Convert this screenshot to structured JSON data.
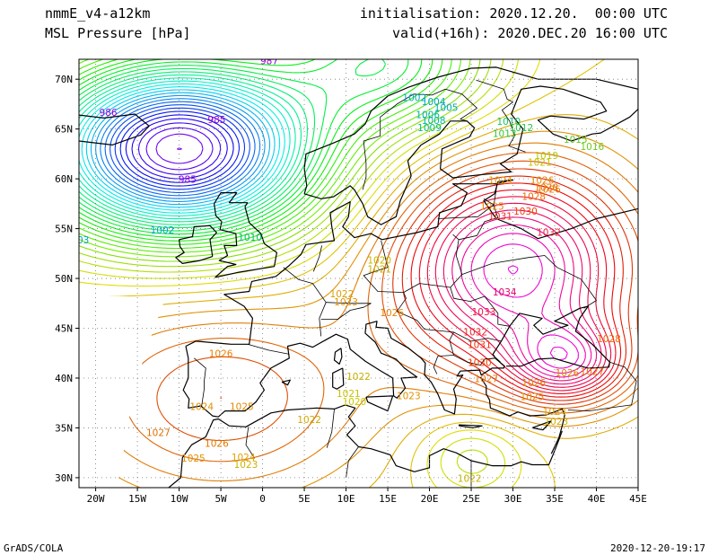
{
  "header": {
    "model": "nmmE_v4-a12km",
    "field": "MSL Pressure [hPa]",
    "init_label": "initialisation:",
    "init_value": "2020.12.20.  00:00 UTC",
    "valid_label": "valid(+16h):",
    "valid_value": "2020.DEC.20 16:00 UTC"
  },
  "footer": {
    "credit": "GrADS/COLA",
    "timestamp": "2020-12-20-19:17"
  },
  "map_data": {
    "projection": "lat-lon",
    "lon_range": [
      -22,
      45
    ],
    "lat_range": [
      29,
      72
    ],
    "lon_ticks": [
      {
        "v": -20,
        "t": "20W"
      },
      {
        "v": -15,
        "t": "15W"
      },
      {
        "v": -10,
        "t": "10W"
      },
      {
        "v": -5,
        "t": "5W"
      },
      {
        "v": 0,
        "t": "0"
      },
      {
        "v": 5,
        "t": "5E"
      },
      {
        "v": 10,
        "t": "10E"
      },
      {
        "v": 15,
        "t": "15E"
      },
      {
        "v": 20,
        "t": "20E"
      },
      {
        "v": 25,
        "t": "25E"
      },
      {
        "v": 30,
        "t": "30E"
      },
      {
        "v": 35,
        "t": "35E"
      },
      {
        "v": 40,
        "t": "40E"
      },
      {
        "v": 45,
        "t": "45E"
      }
    ],
    "lat_ticks": [
      {
        "v": 30,
        "t": "30N"
      },
      {
        "v": 35,
        "t": "35N"
      },
      {
        "v": 40,
        "t": "40N"
      },
      {
        "v": 45,
        "t": "45N"
      },
      {
        "v": 50,
        "t": "50N"
      },
      {
        "v": 55,
        "t": "55N"
      },
      {
        "v": 60,
        "t": "60N"
      },
      {
        "v": 65,
        "t": "65N"
      },
      {
        "v": 70,
        "t": "70N"
      }
    ],
    "grid": "dotted",
    "pressure_centers": [
      {
        "name": "low-iceland",
        "lon": -10,
        "lat": 63,
        "hpa": 984,
        "colorful": true
      },
      {
        "name": "high-russia",
        "lon": 30,
        "lat": 51,
        "hpa": 1035,
        "colorful": true
      },
      {
        "name": "high-turkey",
        "lon": 36.5,
        "lat": 41.5,
        "hpa": 1029,
        "colorful": true
      }
    ],
    "contour_labels": [
      {
        "lon": 0.8,
        "lat": 71.5,
        "text": "987",
        "color": "#9b00d8"
      },
      {
        "lon": -18.5,
        "lat": 66.3,
        "text": "986",
        "color": "#9b00d8"
      },
      {
        "lon": -5.5,
        "lat": 65.6,
        "text": "985",
        "color": "#9b00d8"
      },
      {
        "lon": -9,
        "lat": 59.6,
        "text": "985",
        "color": "#8a00e0"
      },
      {
        "lon": -12,
        "lat": 54.5,
        "text": "1002",
        "color": "#00a0c8"
      },
      {
        "lon": -21.5,
        "lat": 53.5,
        "text": "03",
        "color": "#00a0c8"
      },
      {
        "lon": -1.5,
        "lat": 53.8,
        "text": "1010",
        "color": "#00b878"
      },
      {
        "lon": 18.2,
        "lat": 67.8,
        "text": "1002",
        "color": "#00a8c0"
      },
      {
        "lon": 20.5,
        "lat": 67.4,
        "text": "1004",
        "color": "#00a8c0"
      },
      {
        "lon": 22,
        "lat": 66.8,
        "text": "1005",
        "color": "#00a8c0"
      },
      {
        "lon": 19.8,
        "lat": 66.1,
        "text": "1006",
        "color": "#00b0b0"
      },
      {
        "lon": 20.5,
        "lat": 65.5,
        "text": "1008",
        "color": "#00b8a0"
      },
      {
        "lon": 20,
        "lat": 64.8,
        "text": "1009",
        "color": "#00c080"
      },
      {
        "lon": 29.5,
        "lat": 65.4,
        "text": "1010",
        "color": "#10c860"
      },
      {
        "lon": 31,
        "lat": 64.8,
        "text": "1012",
        "color": "#20c840"
      },
      {
        "lon": 29,
        "lat": 64.2,
        "text": "1013",
        "color": "#30c830"
      },
      {
        "lon": 37.5,
        "lat": 63.6,
        "text": "1015",
        "color": "#60c820"
      },
      {
        "lon": 39.5,
        "lat": 62.9,
        "text": "1016",
        "color": "#70c818"
      },
      {
        "lon": 34,
        "lat": 62.0,
        "text": "1019",
        "color": "#b0c800"
      },
      {
        "lon": 33.2,
        "lat": 61.3,
        "text": "1021",
        "color": "#c8c000"
      },
      {
        "lon": 28.5,
        "lat": 59.5,
        "text": "1024",
        "color": "#e09a00"
      },
      {
        "lon": 33.5,
        "lat": 59.5,
        "text": "1026",
        "color": "#e88400"
      },
      {
        "lon": 34.3,
        "lat": 58.6,
        "text": "1026",
        "color": "#e88000"
      },
      {
        "lon": 34,
        "lat": 58.8,
        "text": "1028",
        "color": "#ee6c00"
      },
      {
        "lon": 32.5,
        "lat": 57.9,
        "text": "1028",
        "color": "#ee6c00"
      },
      {
        "lon": 27.5,
        "lat": 56.9,
        "text": "1025",
        "color": "#e88400"
      },
      {
        "lon": 31.5,
        "lat": 56.4,
        "text": "1030",
        "color": "#f04400"
      },
      {
        "lon": 28.5,
        "lat": 55.9,
        "text": "1031",
        "color": "#f03020"
      },
      {
        "lon": 34.3,
        "lat": 54.3,
        "text": "1032",
        "color": "#f02040"
      },
      {
        "lon": 29,
        "lat": 48.3,
        "text": "1034",
        "color": "#e8006a"
      },
      {
        "lon": 26.5,
        "lat": 46.3,
        "text": "1033",
        "color": "#f01840"
      },
      {
        "lon": 25.5,
        "lat": 44.3,
        "text": "1032",
        "color": "#f02828"
      },
      {
        "lon": 26,
        "lat": 43.0,
        "text": "1031",
        "color": "#f03810"
      },
      {
        "lon": 26,
        "lat": 41.2,
        "text": "1030",
        "color": "#f04800"
      },
      {
        "lon": 26.8,
        "lat": 39.6,
        "text": "1027",
        "color": "#e07800"
      },
      {
        "lon": 32.5,
        "lat": 39.2,
        "text": "1026",
        "color": "#e08400"
      },
      {
        "lon": 36.5,
        "lat": 40.2,
        "text": "1026",
        "color": "#e08400"
      },
      {
        "lon": 39.5,
        "lat": 40.3,
        "text": "1027",
        "color": "#e07800"
      },
      {
        "lon": 41.5,
        "lat": 43.6,
        "text": "1028",
        "color": "#ee6c00"
      },
      {
        "lon": 32.3,
        "lat": 37.8,
        "text": "1025",
        "color": "#e09000"
      },
      {
        "lon": 35,
        "lat": 36.3,
        "text": "1024",
        "color": "#e0a000"
      },
      {
        "lon": 35.2,
        "lat": 35.3,
        "text": "1023",
        "color": "#d0b000"
      },
      {
        "lon": 14,
        "lat": 51.5,
        "text": "1020",
        "color": "#c8b800"
      },
      {
        "lon": 14,
        "lat": 50.6,
        "text": "1021",
        "color": "#c8b000"
      },
      {
        "lon": 9.5,
        "lat": 48.1,
        "text": "1022",
        "color": "#d8a000"
      },
      {
        "lon": 10,
        "lat": 47.3,
        "text": "1023",
        "color": "#e09000"
      },
      {
        "lon": 15.5,
        "lat": 46.2,
        "text": "1026",
        "color": "#e88000"
      },
      {
        "lon": -5,
        "lat": 42.1,
        "text": "1026",
        "color": "#e88000"
      },
      {
        "lon": 11.5,
        "lat": 39.8,
        "text": "1022",
        "color": "#c8b000"
      },
      {
        "lon": 10.3,
        "lat": 38.1,
        "text": "1021",
        "color": "#c8c000"
      },
      {
        "lon": 11,
        "lat": 37.3,
        "text": "1020",
        "color": "#c8c800"
      },
      {
        "lon": 17.5,
        "lat": 37.9,
        "text": "1023",
        "color": "#e09000"
      },
      {
        "lon": 5.6,
        "lat": 35.5,
        "text": "1022",
        "color": "#d0a800"
      },
      {
        "lon": -7.3,
        "lat": 36.8,
        "text": "1024",
        "color": "#e09000"
      },
      {
        "lon": -2.5,
        "lat": 36.8,
        "text": "1025",
        "color": "#e08800"
      },
      {
        "lon": -12.5,
        "lat": 34.2,
        "text": "1027",
        "color": "#e07000"
      },
      {
        "lon": -5.5,
        "lat": 33.1,
        "text": "1026",
        "color": "#e07800"
      },
      {
        "lon": -8.3,
        "lat": 31.6,
        "text": "1025",
        "color": "#e09000"
      },
      {
        "lon": -2.3,
        "lat": 31.7,
        "text": "1024",
        "color": "#e0a000"
      },
      {
        "lon": -2,
        "lat": 31.0,
        "text": "1023",
        "color": "#d0b000"
      },
      {
        "lon": 24.8,
        "lat": 29.6,
        "text": "1022",
        "color": "#c8b000"
      }
    ]
  }
}
